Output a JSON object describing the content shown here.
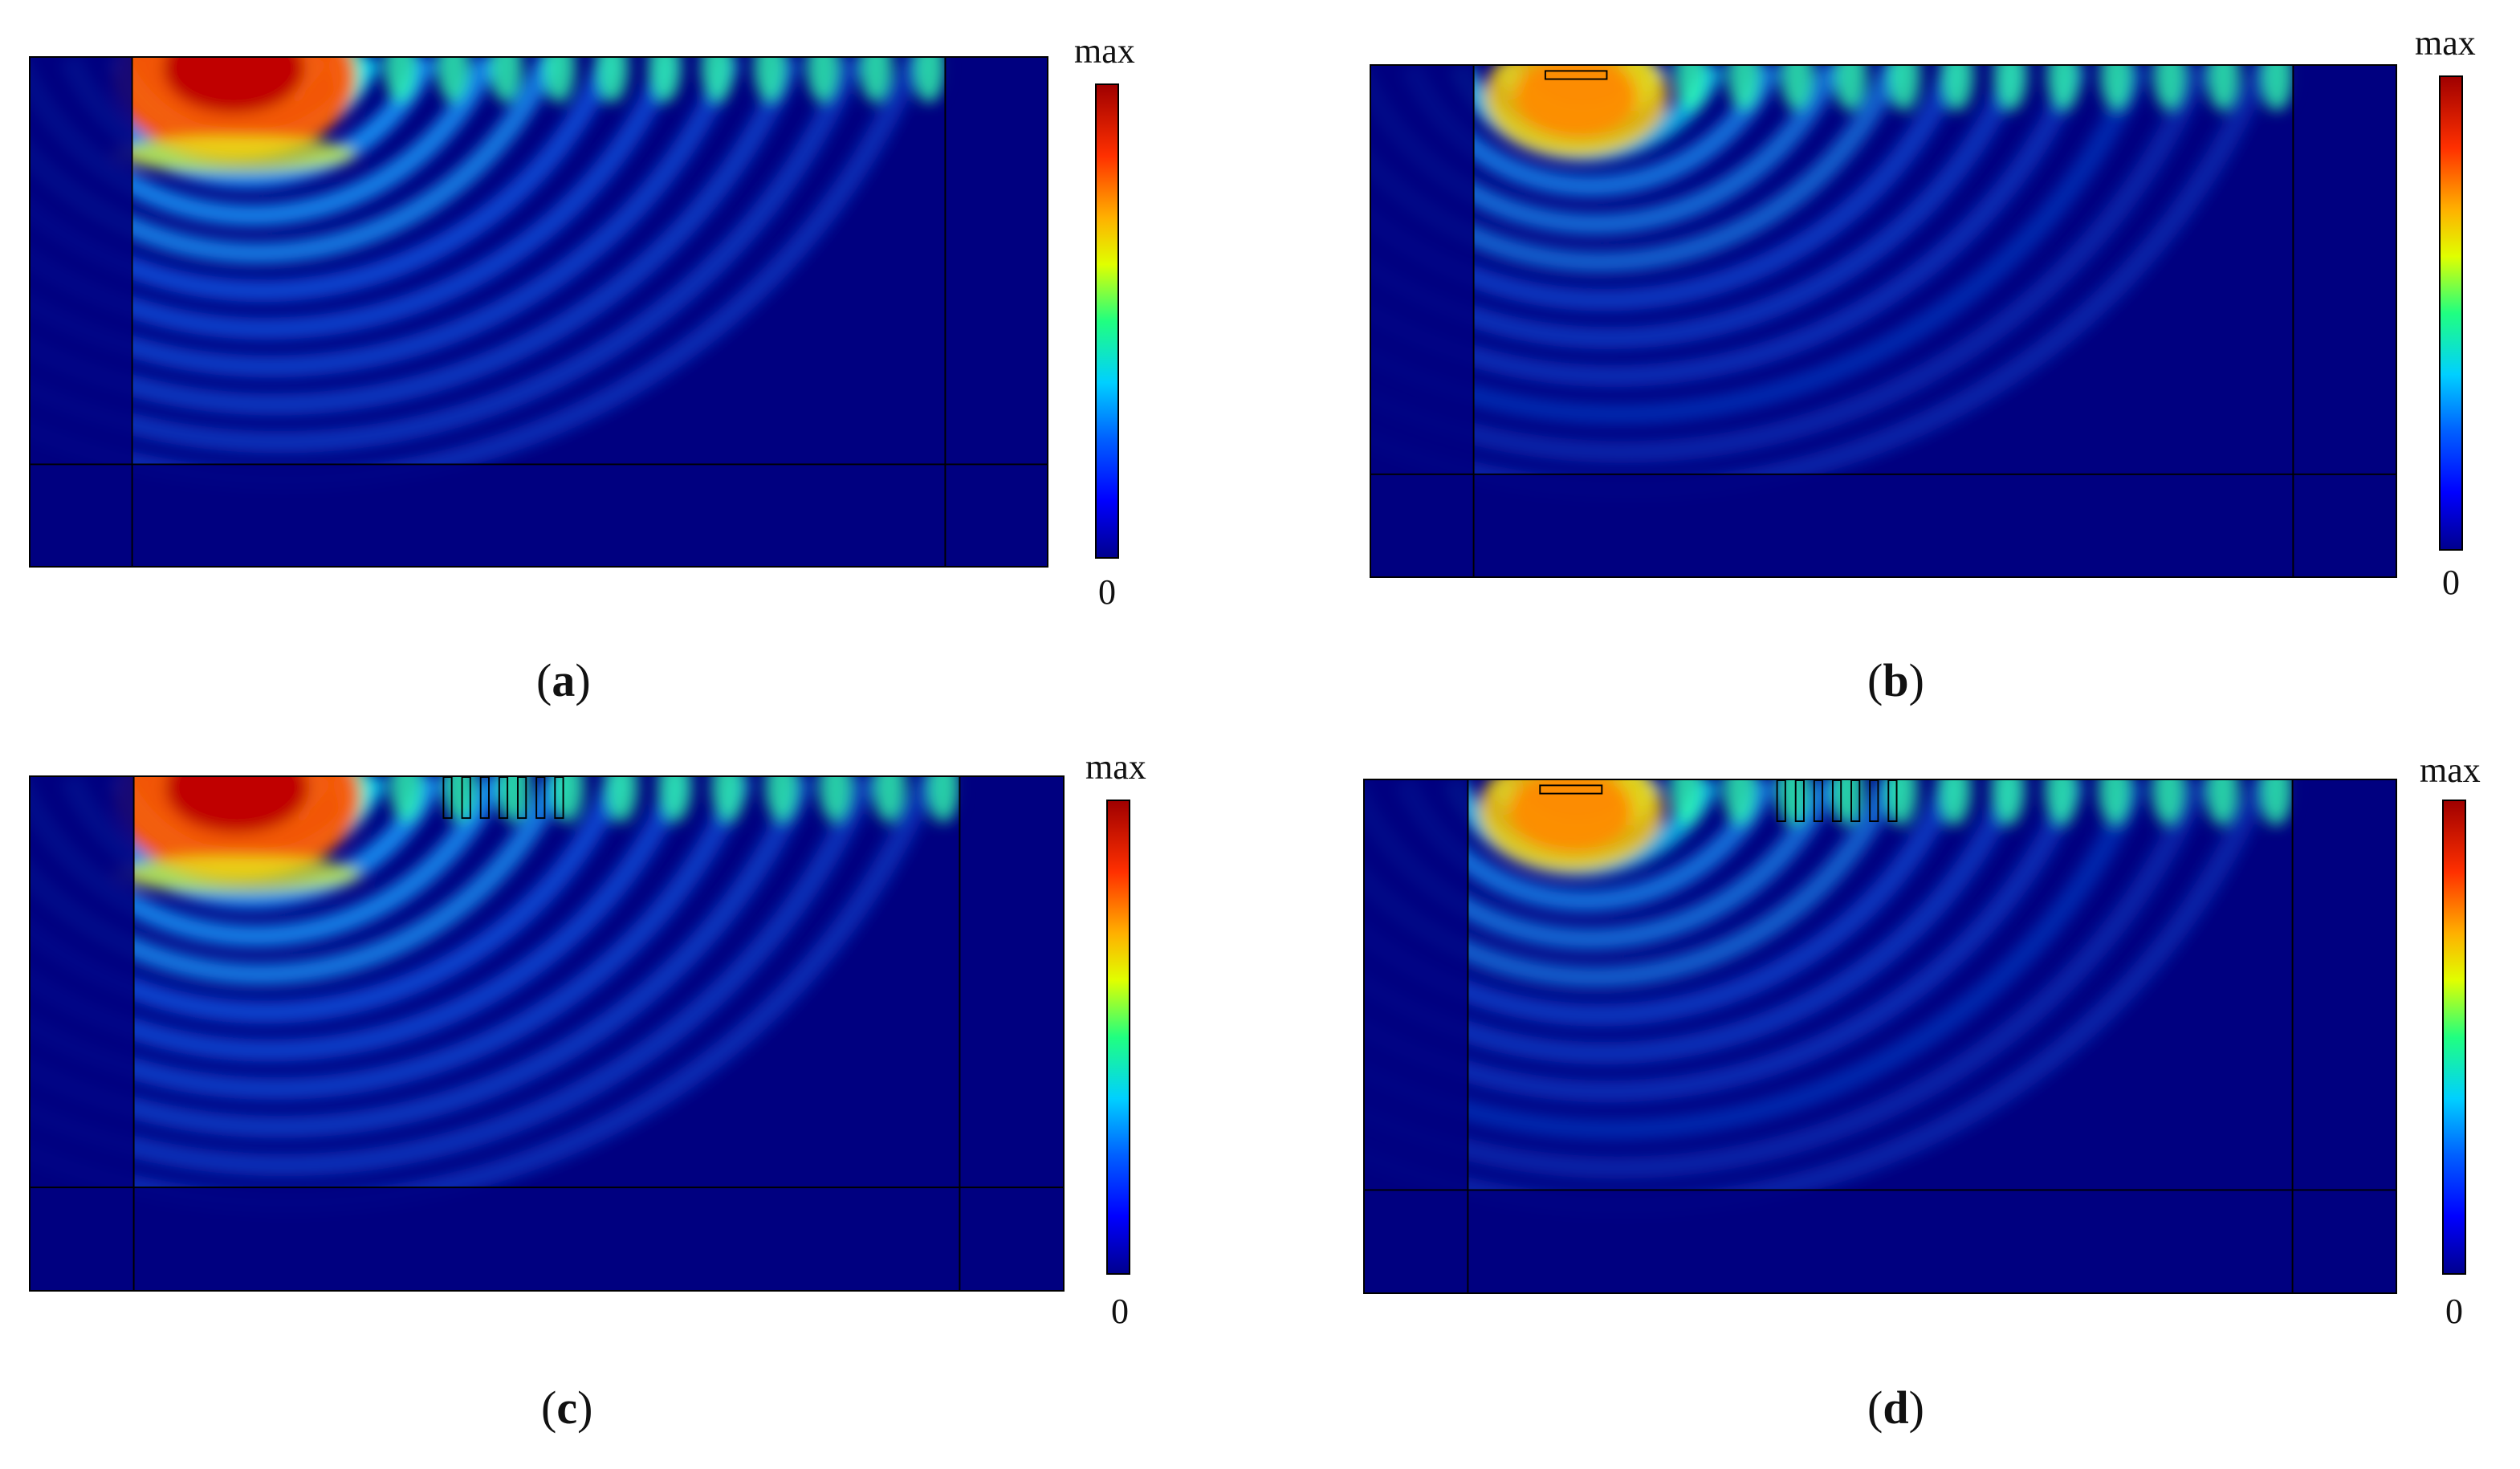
{
  "panels": [
    {
      "id": "a",
      "label": "a",
      "cbar_max": "max",
      "cbar_min": "0",
      "grating": false,
      "source": "strong"
    },
    {
      "id": "b",
      "label": "b",
      "cbar_max": "max",
      "cbar_min": "0",
      "grating": false,
      "source": "weak"
    },
    {
      "id": "c",
      "label": "c",
      "cbar_max": "max",
      "cbar_min": "0",
      "grating": true,
      "source": "strong"
    },
    {
      "id": "d",
      "label": "d",
      "cbar_max": "max",
      "cbar_min": "0",
      "grating": true,
      "source": "weak"
    }
  ],
  "colormap": [
    "#00008f",
    "#0000ff",
    "#0060ff",
    "#00d0ff",
    "#20ff80",
    "#e0ff00",
    "#ffb000",
    "#ff3000",
    "#a00000"
  ]
}
